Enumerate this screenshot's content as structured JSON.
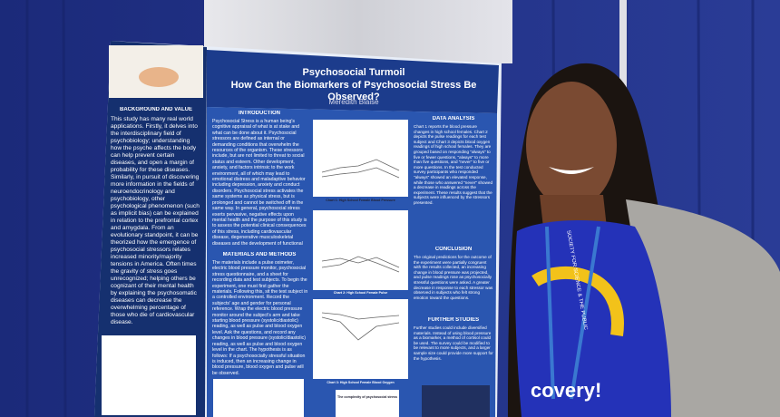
{
  "poster": {
    "title": "Psychosocial Turmoil",
    "subtitle": "How Can the Biomarkers of Psychosocial Stress Be Observed?",
    "author": "Meredith Blaise",
    "sections": [
      {
        "heading": "BACKGROUND AND VALUE",
        "text": "This study has many real world applications. Firstly, it delves into the interdisciplinary field of psychobiology; understanding how the psyche affects the body can help prevent certain diseases, and open a margin of probability for these diseases. Similarly, in pursuit of discovering more information in the fields of neuroendocrinology and psychobiology, other psychological phenomenon (such as implicit bias) can be explained in relation to the prefrontal cortex and amygdala. From an evolutionary standpoint, it can be theorized how the emergence of psychosocial stressors relates increased minority/majority tensions in America. Often times the gravity of stress goes unrecognized; helping others be cognizant of their mental health by explaining the psychosomatic diseases can decrease the overwhelming percentage of those who die of cardiovascular disease."
      },
      {
        "heading": "INTRODUCTION",
        "text": "Psychosocial Stress is a human being's cognitive appraisal of what is at stake and what can be done about it. Psychosocial stressors are defined as internal or demanding conditions that overwhelm the resources of the organism. These stressors include, but are not limited to threat to social status and esteem. Other development, anxiety, and factors intrinsic to the work environment, all of which may lead to emotional distress and maladaptive behavior including depression, anxiety and conduct disorders. Psychosocial stress activates the same systems as physical stress, but is prolonged and cannot be switched off in the same way. In general, psychosocial stress exerts pervasive, negative effects upon mental health and the purpose of this study is to assess the potential clinical consequences of this stress, including cardiovascular disease, degenerative musculoskeletal diseases and the development of functional lesions in the brain."
      },
      {
        "heading": "MATERIALS AND METHODS",
        "text": "The materials include a pulse oximeter, electric blood pressure monitor, psychosocial stress questionnaire, and a sheet for recording data and test subjects. To begin the experiment, one must first gather the materials. Following this, sit the test subject in a controlled environment. Record the subjects' age and gender for personal reference. Wrap the electric blood pressure monitor around the subject's arm and take starting blood pressure (systolic/diastolic) reading, as well as pulse and blood oxygen level. Ask the questions, and record any changes in blood pressure (systolic/diastolic) reading, as well as pulse and blood oxygen level in the chart. The hypothesis is as follows: If a psychosocially stressful situation is induced, then an increasing change in blood pressure, blood oxygen and pulse will be observed."
      },
      {
        "heading": "DATA ANALYSIS",
        "text": "Chart 1 reports the blood pressure changes in high school females. Chart 2 depicts the pulse readings for each test subject and Chart 3 depicts blood oxygen readings of high school females. They are grouped based on responding \"always\" to five or fewer questions, \"always\" to more than five questions, and \"never\" to five or more questions. In the test conducted survey participants who responded \"always\" showed an elevated response, while those who answered \"never\" showed a decrease in readings across the experiment. These results suggest that the subjects were influenced by the stressors presented."
      },
      {
        "heading": "CONCLUSION",
        "text": "The original predictions for the outcome of the experiment were partially congruent with the results collected, an increasing change in blood pressure was projected, and pulse readings rose as psychosocially stressful questions were asked. A greater decrease in response to each stressor was observed in subjects who felt strong emotion toward the questions."
      },
      {
        "heading": "FURTHER STUDIES",
        "text": "Further studies could include diversified materials. Instead of using blood pressure as a biomarker, a method of cortisol could be used. The survey could be modified to be relevant to more subjects, and a larger sample size could provide more support for the hypothesis."
      }
    ],
    "chart_captions": [
      "Chart 1: High School Female Blood Pressure",
      "Chart 2: High School Female Pulse",
      "Chart 3: High School Female Blood Oxygen"
    ],
    "bottom_caption": "The complexity of psychosocial stress"
  },
  "shirt_text": "covery!",
  "lanyard_text": "SOCIETY FOR SCIENCE & THE PUBLIC"
}
